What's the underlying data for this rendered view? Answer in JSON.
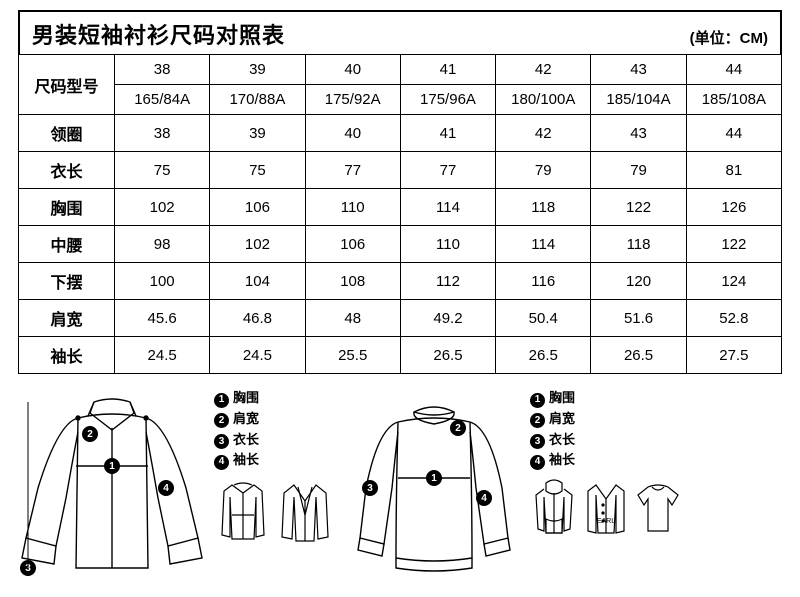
{
  "title": "男装短袖衬衫尺码对照表",
  "unit": "(单位：CM)",
  "header_label": "尺码型号",
  "sizes": [
    "38",
    "39",
    "40",
    "41",
    "42",
    "43",
    "44"
  ],
  "size_specs": [
    "165/84A",
    "170/88A",
    "175/92A",
    "175/96A",
    "180/100A",
    "185/104A",
    "185/108A"
  ],
  "rows": [
    {
      "label": "领圈",
      "values": [
        "38",
        "39",
        "40",
        "41",
        "42",
        "43",
        "44"
      ]
    },
    {
      "label": "衣长",
      "values": [
        "75",
        "75",
        "77",
        "77",
        "79",
        "79",
        "81"
      ]
    },
    {
      "label": "胸围",
      "values": [
        "102",
        "106",
        "110",
        "114",
        "118",
        "122",
        "126"
      ]
    },
    {
      "label": "中腰",
      "values": [
        "98",
        "102",
        "106",
        "110",
        "114",
        "118",
        "122"
      ]
    },
    {
      "label": "下摆",
      "values": [
        "100",
        "104",
        "108",
        "112",
        "116",
        "120",
        "124"
      ]
    },
    {
      "label": "肩宽",
      "values": [
        "45.6",
        "46.8",
        "48",
        "49.2",
        "50.4",
        "51.6",
        "52.8"
      ]
    },
    {
      "label": "袖长",
      "values": [
        "24.5",
        "24.5",
        "25.5",
        "26.5",
        "26.5",
        "26.5",
        "27.5"
      ]
    }
  ],
  "legend": [
    {
      "n": "1",
      "t": "胸围"
    },
    {
      "n": "2",
      "t": "肩宽"
    },
    {
      "n": "3",
      "t": "衣长"
    },
    {
      "n": "4",
      "t": "袖长"
    }
  ],
  "style": {
    "border_color": "#000000",
    "background": "#ffffff",
    "title_fontsize": 22,
    "cell_fontsize": 15,
    "label_fontsize": 16,
    "legend_fontsize": 13,
    "stroke": "#000000",
    "stroke_width": 1.4
  }
}
